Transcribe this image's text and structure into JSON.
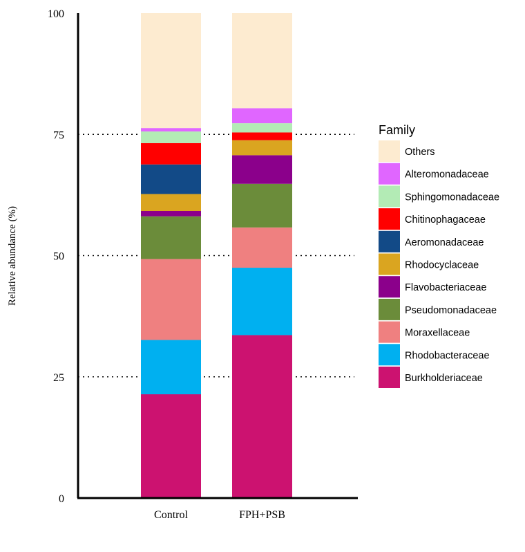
{
  "chart_data": {
    "type": "bar",
    "stacked": true,
    "categories": [
      "Control",
      "FPH+PSB"
    ],
    "ylabel": "Relative abundance (%)",
    "xlabel": "",
    "ylim": [
      0,
      100
    ],
    "yticks": [
      {
        "value": 0,
        "label": "0"
      },
      {
        "value": 25,
        "label": "25"
      },
      {
        "value": 50,
        "label": "50"
      },
      {
        "value": 75,
        "label": "75"
      },
      {
        "value": 100,
        "label": "100"
      }
    ],
    "gridlines": [
      25,
      50,
      75
    ],
    "legend_title": "Family",
    "legend_position": "right",
    "series": [
      {
        "name": "Burkholderiaceae",
        "color": "#cc1270",
        "values": [
          21.4,
          33.6
        ]
      },
      {
        "name": "Rhodobacteraceae",
        "color": "#00b0f0",
        "values": [
          11.2,
          13.9
        ]
      },
      {
        "name": "Moraxellaceae",
        "color": "#ef8080",
        "values": [
          16.7,
          8.3
        ]
      },
      {
        "name": "Pseudomonadaceae",
        "color": "#6b8c3a",
        "values": [
          8.8,
          9.0
        ]
      },
      {
        "name": "Flavobacteriaceae",
        "color": "#8b008b",
        "values": [
          1.1,
          5.9
        ]
      },
      {
        "name": "Rhodocyclaceae",
        "color": "#daa520",
        "values": [
          3.5,
          3.1
        ]
      },
      {
        "name": "Aeromonadaceae",
        "color": "#124a87",
        "values": [
          6.1,
          0
        ]
      },
      {
        "name": "Chitinophagaceae",
        "color": "#ff0000",
        "values": [
          4.4,
          1.6
        ]
      },
      {
        "name": "Sphingomonadaceae",
        "color": "#b3ebb5",
        "values": [
          2.4,
          1.9
        ]
      },
      {
        "name": "Alteromonadaceae",
        "color": "#e066ff",
        "values": [
          0.7,
          3.1
        ]
      },
      {
        "name": "Others",
        "color": "#fdebd0",
        "values": [
          23.7,
          19.6
        ]
      }
    ]
  }
}
